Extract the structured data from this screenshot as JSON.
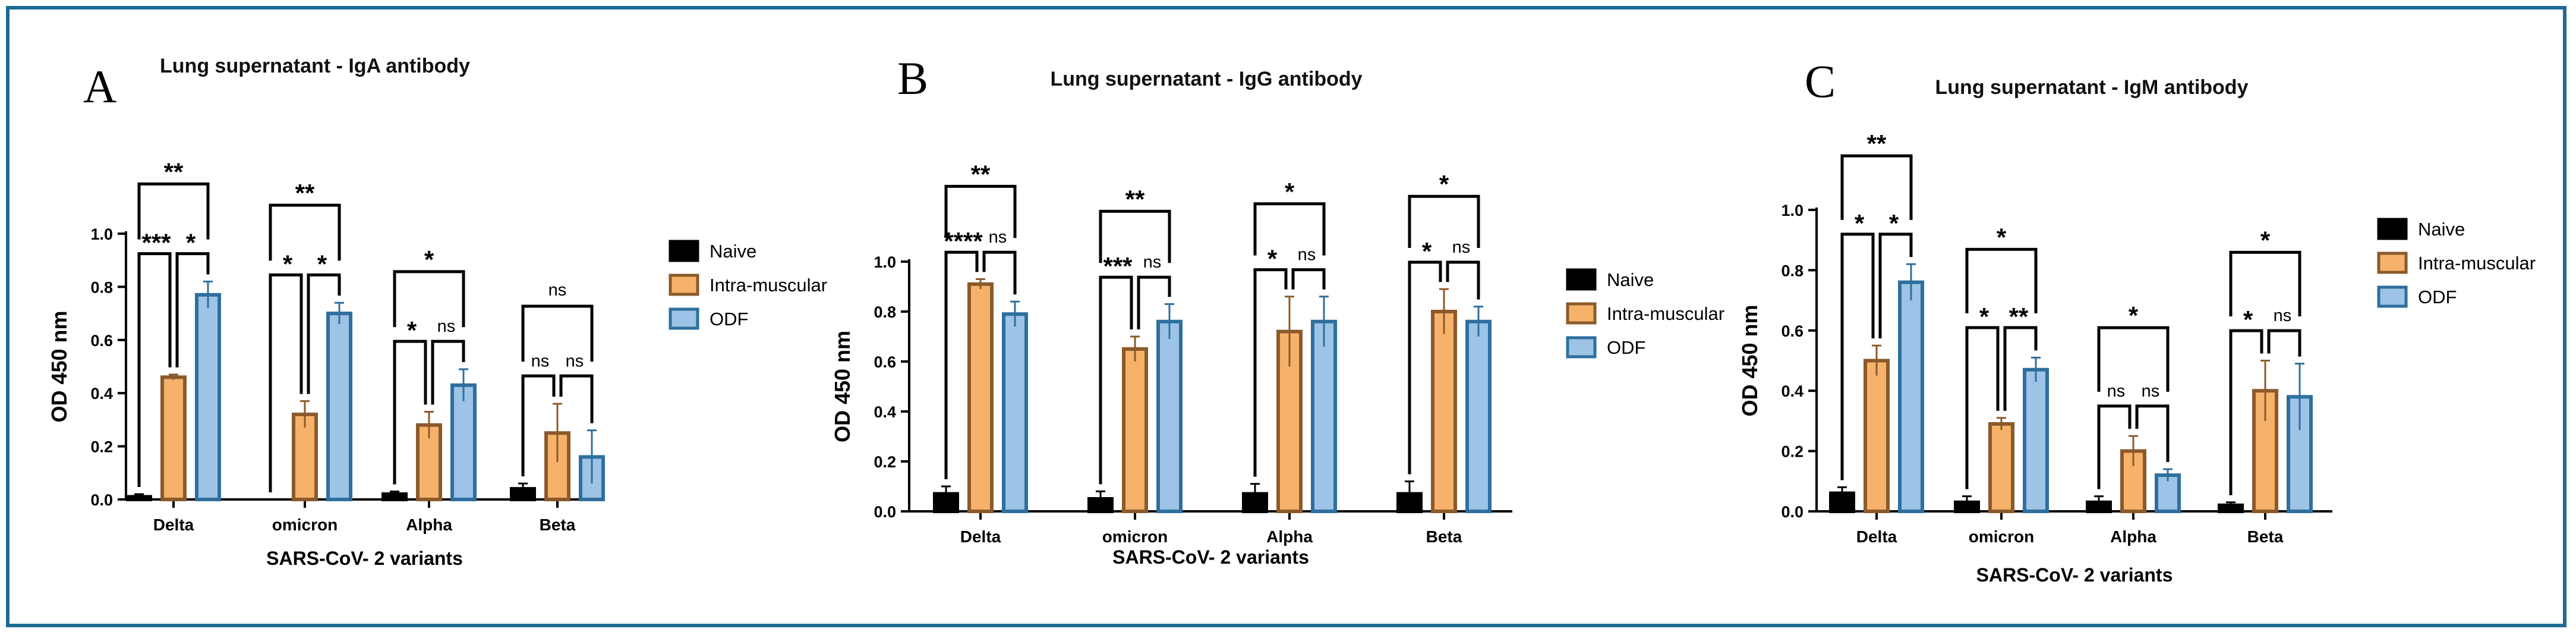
{
  "figure": {
    "legend_labels": [
      "Naive",
      "Intra-muscular",
      "ODF"
    ],
    "series_colors": {
      "Naive": "#000000",
      "Intra-muscular": "#f6b26b",
      "ODF": "#9dc3e6"
    },
    "series_edges": {
      "Naive": "#000000",
      "Intra-muscular": "#8b5a2b",
      "ODF": "#2e6f9e"
    },
    "border_color": "#1f6b93"
  },
  "chart_data": [
    {
      "panel_letter": "A",
      "type": "bar",
      "title": "Lung supernatant - IgA antibody",
      "xlabel": "SARS-CoV- 2 variants",
      "ylabel": "OD 450 nm",
      "ylim": [
        0,
        1.0
      ],
      "yticks": [
        "0.0",
        "0.2",
        "0.4",
        "0.6",
        "0.8",
        "1.0"
      ],
      "categories": [
        "Delta",
        "omicron",
        "Alpha",
        "Beta"
      ],
      "series": [
        {
          "name": "Naive",
          "values": [
            0.01,
            0.0,
            0.02,
            0.04
          ],
          "errors": [
            0.01,
            0.0,
            0.01,
            0.02
          ]
        },
        {
          "name": "Intra-muscular",
          "values": [
            0.46,
            0.32,
            0.28,
            0.25
          ],
          "errors": [
            0.01,
            0.05,
            0.05,
            0.11
          ]
        },
        {
          "name": "ODF",
          "values": [
            0.77,
            0.7,
            0.43,
            0.16
          ],
          "errors": [
            0.05,
            0.04,
            0.06,
            0.1
          ]
        }
      ],
      "significance": [
        {
          "category": "Delta",
          "short1": "***",
          "short2": "*",
          "long": "**"
        },
        {
          "category": "omicron",
          "short1": "*",
          "short2": "*",
          "long": "**"
        },
        {
          "category": "Alpha",
          "short1": "*",
          "short2": "ns",
          "long": "*"
        },
        {
          "category": "Beta",
          "short1": "ns",
          "short2": "ns",
          "long": "ns"
        }
      ]
    },
    {
      "panel_letter": "B",
      "type": "bar",
      "title": "Lung supernatant - IgG antibody",
      "xlabel": "SARS-CoV- 2 variants",
      "ylabel": "OD 450 nm",
      "ylim": [
        0,
        1.0
      ],
      "yticks": [
        "0.0",
        "0.2",
        "0.4",
        "0.6",
        "0.8",
        "1.0"
      ],
      "categories": [
        "Delta",
        "omicron",
        "Alpha",
        "Beta"
      ],
      "series": [
        {
          "name": "Naive",
          "values": [
            0.07,
            0.05,
            0.07,
            0.07
          ],
          "errors": [
            0.03,
            0.03,
            0.04,
            0.05
          ]
        },
        {
          "name": "Intra-muscular",
          "values": [
            0.91,
            0.65,
            0.72,
            0.8
          ],
          "errors": [
            0.02,
            0.05,
            0.14,
            0.09
          ]
        },
        {
          "name": "ODF",
          "values": [
            0.79,
            0.76,
            0.76,
            0.76
          ],
          "errors": [
            0.05,
            0.07,
            0.1,
            0.06
          ]
        }
      ],
      "significance": [
        {
          "category": "Delta",
          "short1": "****",
          "short2": "ns",
          "long": "**"
        },
        {
          "category": "omicron",
          "short1": "***",
          "short2": "ns",
          "long": "**"
        },
        {
          "category": "Alpha",
          "short1": "*",
          "short2": "ns",
          "long": "*"
        },
        {
          "category": "Beta",
          "short1": "*",
          "short2": "ns",
          "long": "*"
        }
      ]
    },
    {
      "panel_letter": "C",
      "type": "bar",
      "title": "Lung supernatant - IgM antibody",
      "xlabel": "SARS-CoV- 2 variants",
      "ylabel": "OD 450 nm",
      "ylim": [
        0,
        1.0
      ],
      "yticks": [
        "0.0",
        "0.2",
        "0.4",
        "0.6",
        "0.8",
        "1.0"
      ],
      "categories": [
        "Delta",
        "omicron",
        "Alpha",
        "Beta"
      ],
      "series": [
        {
          "name": "Naive",
          "values": [
            0.06,
            0.03,
            0.03,
            0.02
          ],
          "errors": [
            0.02,
            0.02,
            0.02,
            0.01
          ]
        },
        {
          "name": "Intra-muscular",
          "values": [
            0.5,
            0.29,
            0.2,
            0.4
          ],
          "errors": [
            0.05,
            0.02,
            0.05,
            0.1
          ]
        },
        {
          "name": "ODF",
          "values": [
            0.76,
            0.47,
            0.12,
            0.38
          ],
          "errors": [
            0.06,
            0.04,
            0.02,
            0.11
          ]
        }
      ],
      "significance": [
        {
          "category": "Delta",
          "short1": "*",
          "short2": "*",
          "long": "**"
        },
        {
          "category": "omicron",
          "short1": "*",
          "short2": "**",
          "long": "*"
        },
        {
          "category": "Alpha",
          "short1": "ns",
          "short2": "ns",
          "long": "*"
        },
        {
          "category": "Beta",
          "short1": "*",
          "short2": "ns",
          "long": "*"
        }
      ]
    }
  ]
}
